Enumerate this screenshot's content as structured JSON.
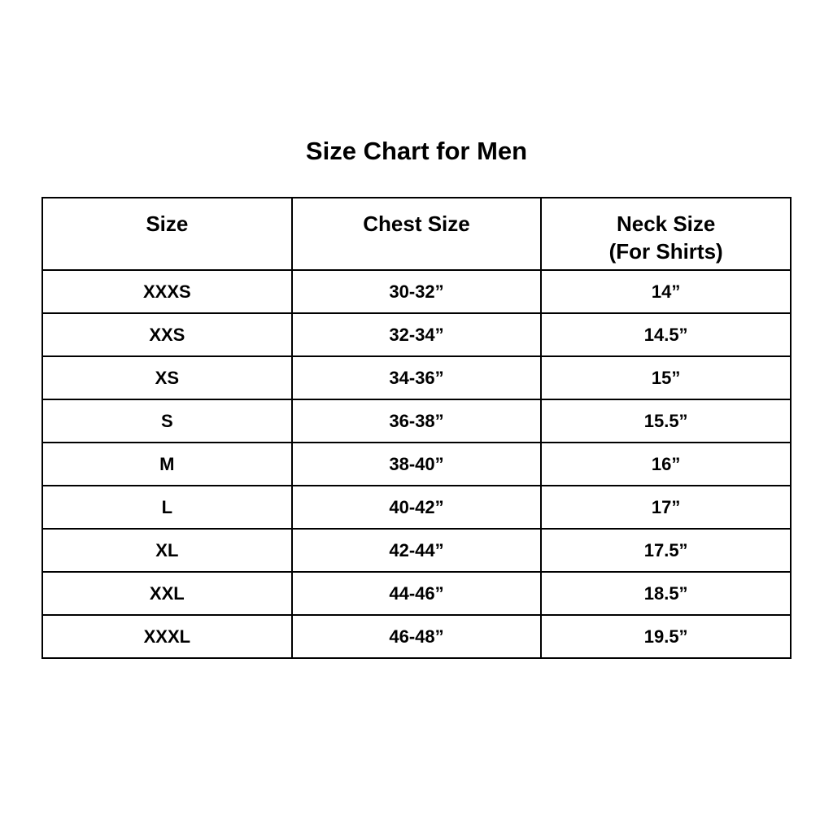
{
  "title": "Size Chart for Men",
  "table": {
    "headers": [
      {
        "label": "Size",
        "sub": ""
      },
      {
        "label": "Chest Size",
        "sub": ""
      },
      {
        "label": "Neck Size",
        "sub": "(For Shirts)"
      }
    ],
    "rows": [
      [
        "XXXS",
        "30-32”",
        "14”"
      ],
      [
        "XXS",
        "32-34”",
        "14.5”"
      ],
      [
        "XS",
        "34-36”",
        "15”"
      ],
      [
        "S",
        "36-38”",
        "15.5”"
      ],
      [
        "M",
        "38-40”",
        "16”"
      ],
      [
        "L",
        "40-42”",
        "17”"
      ],
      [
        "XL",
        "42-44”",
        "17.5”"
      ],
      [
        "XXL",
        "44-46”",
        "18.5”"
      ],
      [
        "XXXL",
        "46-48”",
        "19.5”"
      ]
    ]
  }
}
